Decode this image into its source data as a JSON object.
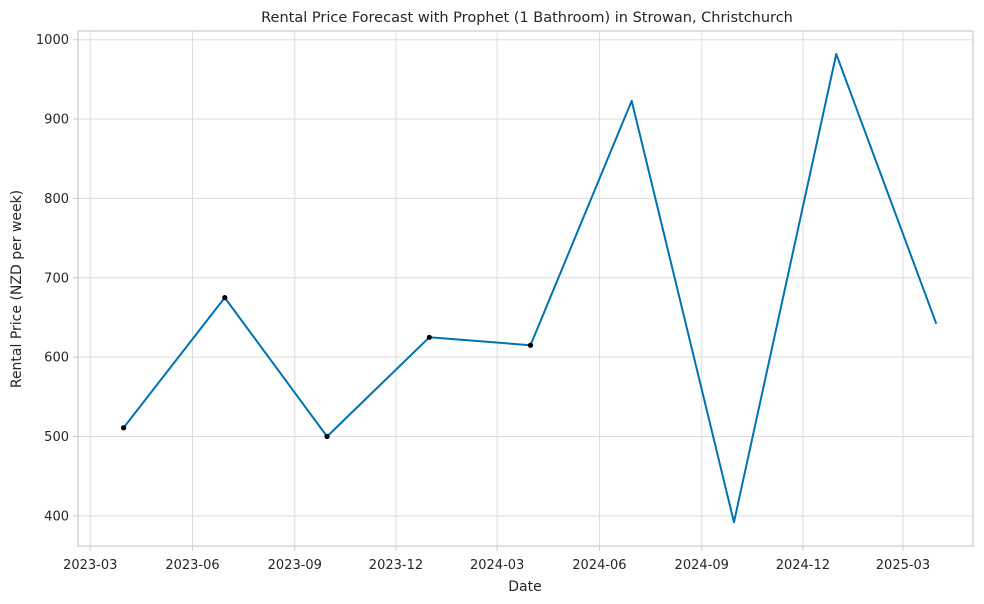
{
  "chart_data": {
    "type": "line",
    "title": "Rental Price Forecast with Prophet (1 Bathroom) in Strowan, Christchurch",
    "xlabel": "Date",
    "ylabel": "Rental Price (NZD per week)",
    "xlim": [
      "2023-02-18",
      "2025-05-03"
    ],
    "ylim": [
      362,
      1011
    ],
    "y_ticks": [
      400,
      500,
      600,
      700,
      800,
      900,
      1000
    ],
    "x_ticks": [
      {
        "date": "2023-03-01",
        "label": "2023-03"
      },
      {
        "date": "2023-06-01",
        "label": "2023-06"
      },
      {
        "date": "2023-09-01",
        "label": "2023-09"
      },
      {
        "date": "2023-12-01",
        "label": "2023-12"
      },
      {
        "date": "2024-03-01",
        "label": "2024-03"
      },
      {
        "date": "2024-06-01",
        "label": "2024-06"
      },
      {
        "date": "2024-09-01",
        "label": "2024-09"
      },
      {
        "date": "2024-12-01",
        "label": "2024-12"
      },
      {
        "date": "2025-03-01",
        "label": "2025-03"
      }
    ],
    "grid": true,
    "series": [
      {
        "type": "line",
        "color": "#0072B2",
        "points": [
          {
            "x": "2023-03-31",
            "y": 511
          },
          {
            "x": "2023-06-30",
            "y": 675
          },
          {
            "x": "2023-09-30",
            "y": 500
          },
          {
            "x": "2023-12-31",
            "y": 625
          },
          {
            "x": "2024-03-31",
            "y": 615
          },
          {
            "x": "2024-06-30",
            "y": 923
          },
          {
            "x": "2024-09-30",
            "y": 392
          },
          {
            "x": "2024-12-31",
            "y": 982
          },
          {
            "x": "2025-03-31",
            "y": 642
          }
        ]
      },
      {
        "type": "scatter",
        "color": "#000000",
        "points": [
          {
            "x": "2023-03-31",
            "y": 511
          },
          {
            "x": "2023-06-30",
            "y": 675
          },
          {
            "x": "2023-09-30",
            "y": 500
          },
          {
            "x": "2023-12-31",
            "y": 625
          },
          {
            "x": "2024-03-31",
            "y": 615
          }
        ]
      }
    ]
  }
}
